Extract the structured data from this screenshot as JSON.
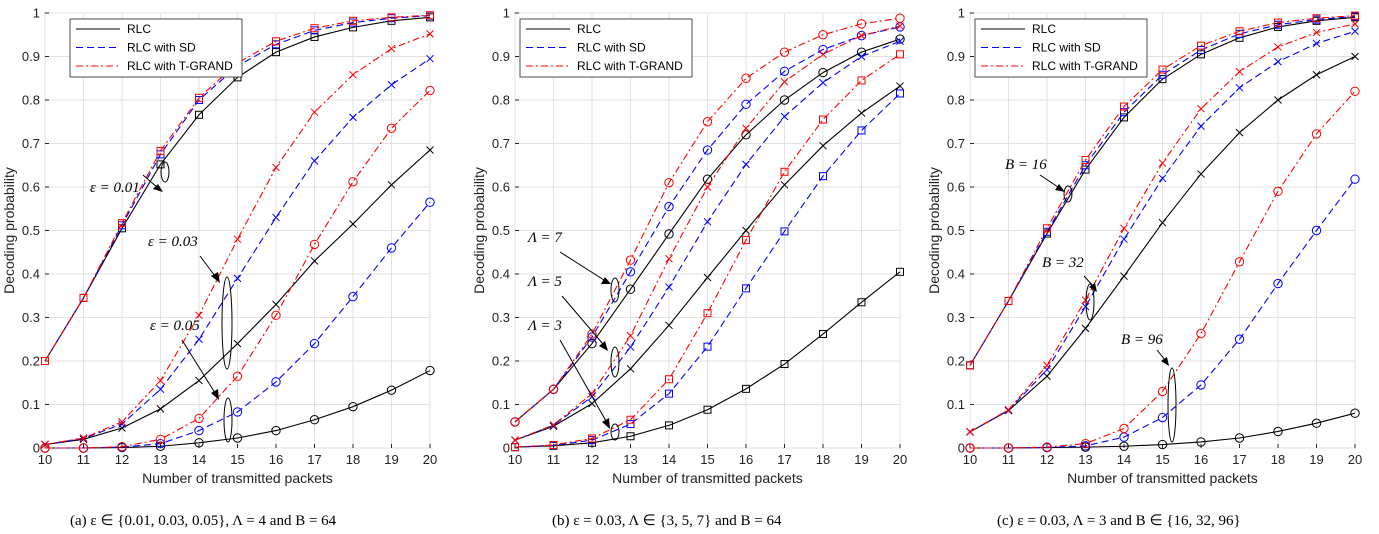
{
  "styles": {
    "RLC": {
      "color": "#000000",
      "dash": "none"
    },
    "RLC with SD": {
      "color": "#0000ff",
      "dash": "7,4"
    },
    "RLC with T-GRAND": {
      "color": "#ff0000",
      "dash": "7,3,2,3"
    }
  },
  "chart_data": [
    {
      "type": "line",
      "caption": "(a) ε ∈ {0.01, 0.03, 0.05}, Λ = 4 and B = 64",
      "xlabel": "Number of transmitted packets",
      "ylabel": "Decoding probability",
      "xlim": [
        10,
        20
      ],
      "ylim": [
        0,
        1
      ],
      "xticks": [
        10,
        11,
        12,
        13,
        14,
        15,
        16,
        17,
        18,
        19,
        20
      ],
      "yticks": [
        0,
        0.1,
        0.2,
        0.3,
        0.4,
        0.5,
        0.6,
        0.7,
        0.8,
        0.9,
        1
      ],
      "ytick_labels": [
        "0",
        "0.1",
        "0.2",
        "0.3",
        "0.4",
        "0.5",
        "0.6",
        "0.7",
        "0.8",
        "0.9",
        "1"
      ],
      "grid": true,
      "legend": {
        "position": "top-left",
        "entries": [
          "RLC",
          "RLC with SD",
          "RLC with T-GRAND"
        ]
      },
      "annotations": [
        "ε = 0.01",
        "ε = 0.03",
        "ε = 0.05"
      ],
      "x": [
        10,
        11,
        12,
        13,
        14,
        15,
        16,
        17,
        18,
        19,
        20
      ],
      "series": [
        {
          "name": "RLC",
          "marker": "square",
          "values": [
            0.2,
            0.345,
            0.505,
            0.652,
            0.766,
            0.852,
            0.91,
            0.945,
            0.967,
            0.982,
            0.99
          ]
        },
        {
          "name": "RLC with SD",
          "marker": "square",
          "values": [
            0.2,
            0.345,
            0.512,
            0.675,
            0.8,
            0.878,
            0.928,
            0.96,
            0.978,
            0.988,
            0.994
          ]
        },
        {
          "name": "RLC with T-GRAND",
          "marker": "square",
          "values": [
            0.2,
            0.345,
            0.517,
            0.683,
            0.805,
            0.885,
            0.935,
            0.965,
            0.982,
            0.99,
            0.995
          ]
        },
        {
          "name": "RLC",
          "marker": "x",
          "values": [
            0.008,
            0.02,
            0.046,
            0.09,
            0.155,
            0.24,
            0.33,
            0.43,
            0.515,
            0.605,
            0.685
          ]
        },
        {
          "name": "RLC with SD",
          "marker": "x",
          "values": [
            0.008,
            0.022,
            0.055,
            0.135,
            0.25,
            0.39,
            0.53,
            0.66,
            0.76,
            0.835,
            0.895
          ]
        },
        {
          "name": "RLC with T-GRAND",
          "marker": "x",
          "values": [
            0.008,
            0.023,
            0.06,
            0.155,
            0.305,
            0.48,
            0.645,
            0.772,
            0.858,
            0.918,
            0.952
          ]
        },
        {
          "name": "RLC",
          "marker": "circle",
          "values": [
            0,
            0,
            0.001,
            0.004,
            0.012,
            0.023,
            0.04,
            0.065,
            0.095,
            0.133,
            0.178
          ]
        },
        {
          "name": "RLC with SD",
          "marker": "circle",
          "values": [
            0,
            0,
            0.002,
            0.01,
            0.04,
            0.083,
            0.152,
            0.24,
            0.348,
            0.46,
            0.565
          ]
        },
        {
          "name": "RLC with T-GRAND",
          "marker": "circle",
          "values": [
            0,
            0,
            0.003,
            0.02,
            0.068,
            0.165,
            0.305,
            0.468,
            0.612,
            0.735,
            0.822
          ]
        }
      ]
    },
    {
      "type": "line",
      "caption": "(b) ε = 0.03, Λ ∈ {3, 5, 7} and B = 64",
      "xlabel": "Number of transmitted packets",
      "ylabel": "Decoding probability",
      "xlim": [
        10,
        20
      ],
      "ylim": [
        0,
        1
      ],
      "xticks": [
        10,
        11,
        12,
        13,
        14,
        15,
        16,
        17,
        18,
        19,
        20
      ],
      "yticks": [
        0,
        0.1,
        0.2,
        0.3,
        0.4,
        0.5,
        0.6,
        0.7,
        0.8,
        0.9,
        1
      ],
      "ytick_labels": [
        "0",
        "0.1",
        "0.2",
        "0.3",
        "0.4",
        "0.5",
        "0.6",
        "0.7",
        "0.8",
        "0.9",
        "1"
      ],
      "grid": true,
      "legend": {
        "position": "top-left",
        "entries": [
          "RLC",
          "RLC with SD",
          "RLC with T-GRAND"
        ]
      },
      "annotations": [
        "Λ = 7",
        "Λ = 5",
        "Λ = 3"
      ],
      "x": [
        10,
        11,
        12,
        13,
        14,
        15,
        16,
        17,
        18,
        19,
        20
      ],
      "series": [
        {
          "name": "RLC",
          "marker": "circle",
          "values": [
            0.06,
            0.135,
            0.24,
            0.365,
            0.492,
            0.618,
            0.72,
            0.8,
            0.863,
            0.91,
            0.94
          ]
        },
        {
          "name": "RLC with SD",
          "marker": "circle",
          "values": [
            0.06,
            0.135,
            0.255,
            0.405,
            0.555,
            0.685,
            0.79,
            0.866,
            0.916,
            0.948,
            0.968
          ]
        },
        {
          "name": "RLC with T-GRAND",
          "marker": "circle",
          "values": [
            0.06,
            0.135,
            0.262,
            0.432,
            0.61,
            0.75,
            0.85,
            0.91,
            0.95,
            0.975,
            0.988
          ]
        },
        {
          "name": "RLC",
          "marker": "x",
          "values": [
            0.018,
            0.05,
            0.102,
            0.182,
            0.282,
            0.392,
            0.5,
            0.605,
            0.695,
            0.77,
            0.832
          ]
        },
        {
          "name": "RLC with SD",
          "marker": "x",
          "values": [
            0.018,
            0.052,
            0.118,
            0.232,
            0.37,
            0.52,
            0.652,
            0.762,
            0.84,
            0.9,
            0.935
          ]
        },
        {
          "name": "RLC with T-GRAND",
          "marker": "x",
          "values": [
            0.018,
            0.053,
            0.125,
            0.258,
            0.435,
            0.6,
            0.735,
            0.842,
            0.905,
            0.948,
            0.97
          ]
        },
        {
          "name": "RLC",
          "marker": "square",
          "values": [
            0.002,
            0.005,
            0.012,
            0.027,
            0.052,
            0.088,
            0.136,
            0.193,
            0.262,
            0.335,
            0.405
          ]
        },
        {
          "name": "RLC with SD",
          "marker": "square",
          "values": [
            0.002,
            0.006,
            0.018,
            0.055,
            0.125,
            0.233,
            0.367,
            0.498,
            0.625,
            0.73,
            0.815
          ]
        },
        {
          "name": "RLC with T-GRAND",
          "marker": "square",
          "values": [
            0.002,
            0.007,
            0.022,
            0.065,
            0.158,
            0.31,
            0.478,
            0.635,
            0.755,
            0.845,
            0.905
          ]
        }
      ]
    },
    {
      "type": "line",
      "caption": "(c) ε = 0.03, Λ = 3 and B ∈ {16, 32, 96}",
      "xlabel": "Number of transmitted packets",
      "ylabel": "Decoding probability",
      "xlim": [
        10,
        20
      ],
      "ylim": [
        0,
        1
      ],
      "xticks": [
        10,
        11,
        12,
        13,
        14,
        15,
        16,
        17,
        18,
        19,
        20
      ],
      "yticks": [
        0,
        0.1,
        0.2,
        0.3,
        0.4,
        0.5,
        0.6,
        0.7,
        0.8,
        0.9,
        1
      ],
      "ytick_labels": [
        "0",
        "0.1",
        "0.2",
        "0.3",
        "0.4",
        "0.5",
        "0.6",
        "0.7",
        "0.8",
        "0.9",
        "1"
      ],
      "grid": true,
      "legend": {
        "position": "top-left",
        "entries": [
          "RLC",
          "RLC with SD",
          "RLC with T-GRAND"
        ]
      },
      "annotations": [
        "B = 16",
        "B = 32",
        "B = 96"
      ],
      "x": [
        10,
        11,
        12,
        13,
        14,
        15,
        16,
        17,
        18,
        19,
        20
      ],
      "series": [
        {
          "name": "RLC",
          "marker": "square",
          "values": [
            0.19,
            0.338,
            0.493,
            0.64,
            0.76,
            0.848,
            0.905,
            0.943,
            0.968,
            0.982,
            0.99
          ]
        },
        {
          "name": "RLC with SD",
          "marker": "square",
          "values": [
            0.19,
            0.338,
            0.497,
            0.65,
            0.772,
            0.858,
            0.915,
            0.952,
            0.973,
            0.985,
            0.992
          ]
        },
        {
          "name": "RLC with T-GRAND",
          "marker": "square",
          "values": [
            0.19,
            0.338,
            0.505,
            0.662,
            0.785,
            0.87,
            0.925,
            0.958,
            0.978,
            0.988,
            0.994
          ]
        },
        {
          "name": "RLC",
          "marker": "x",
          "values": [
            0.037,
            0.086,
            0.165,
            0.275,
            0.395,
            0.518,
            0.63,
            0.725,
            0.8,
            0.858,
            0.9
          ]
        },
        {
          "name": "RLC with SD",
          "marker": "x",
          "values": [
            0.037,
            0.087,
            0.18,
            0.325,
            0.48,
            0.62,
            0.74,
            0.828,
            0.888,
            0.93,
            0.958
          ]
        },
        {
          "name": "RLC with T-GRAND",
          "marker": "x",
          "values": [
            0.037,
            0.088,
            0.19,
            0.34,
            0.505,
            0.655,
            0.78,
            0.865,
            0.922,
            0.955,
            0.975
          ]
        },
        {
          "name": "RLC",
          "marker": "circle",
          "values": [
            0,
            0,
            0.001,
            0.002,
            0.004,
            0.008,
            0.014,
            0.023,
            0.038,
            0.057,
            0.08
          ]
        },
        {
          "name": "RLC with SD",
          "marker": "circle",
          "values": [
            0,
            0,
            0.001,
            0.005,
            0.025,
            0.07,
            0.145,
            0.25,
            0.378,
            0.5,
            0.618
          ]
        },
        {
          "name": "RLC with T-GRAND",
          "marker": "circle",
          "values": [
            0,
            0,
            0.002,
            0.01,
            0.045,
            0.13,
            0.263,
            0.428,
            0.59,
            0.722,
            0.82
          ]
        }
      ]
    }
  ]
}
